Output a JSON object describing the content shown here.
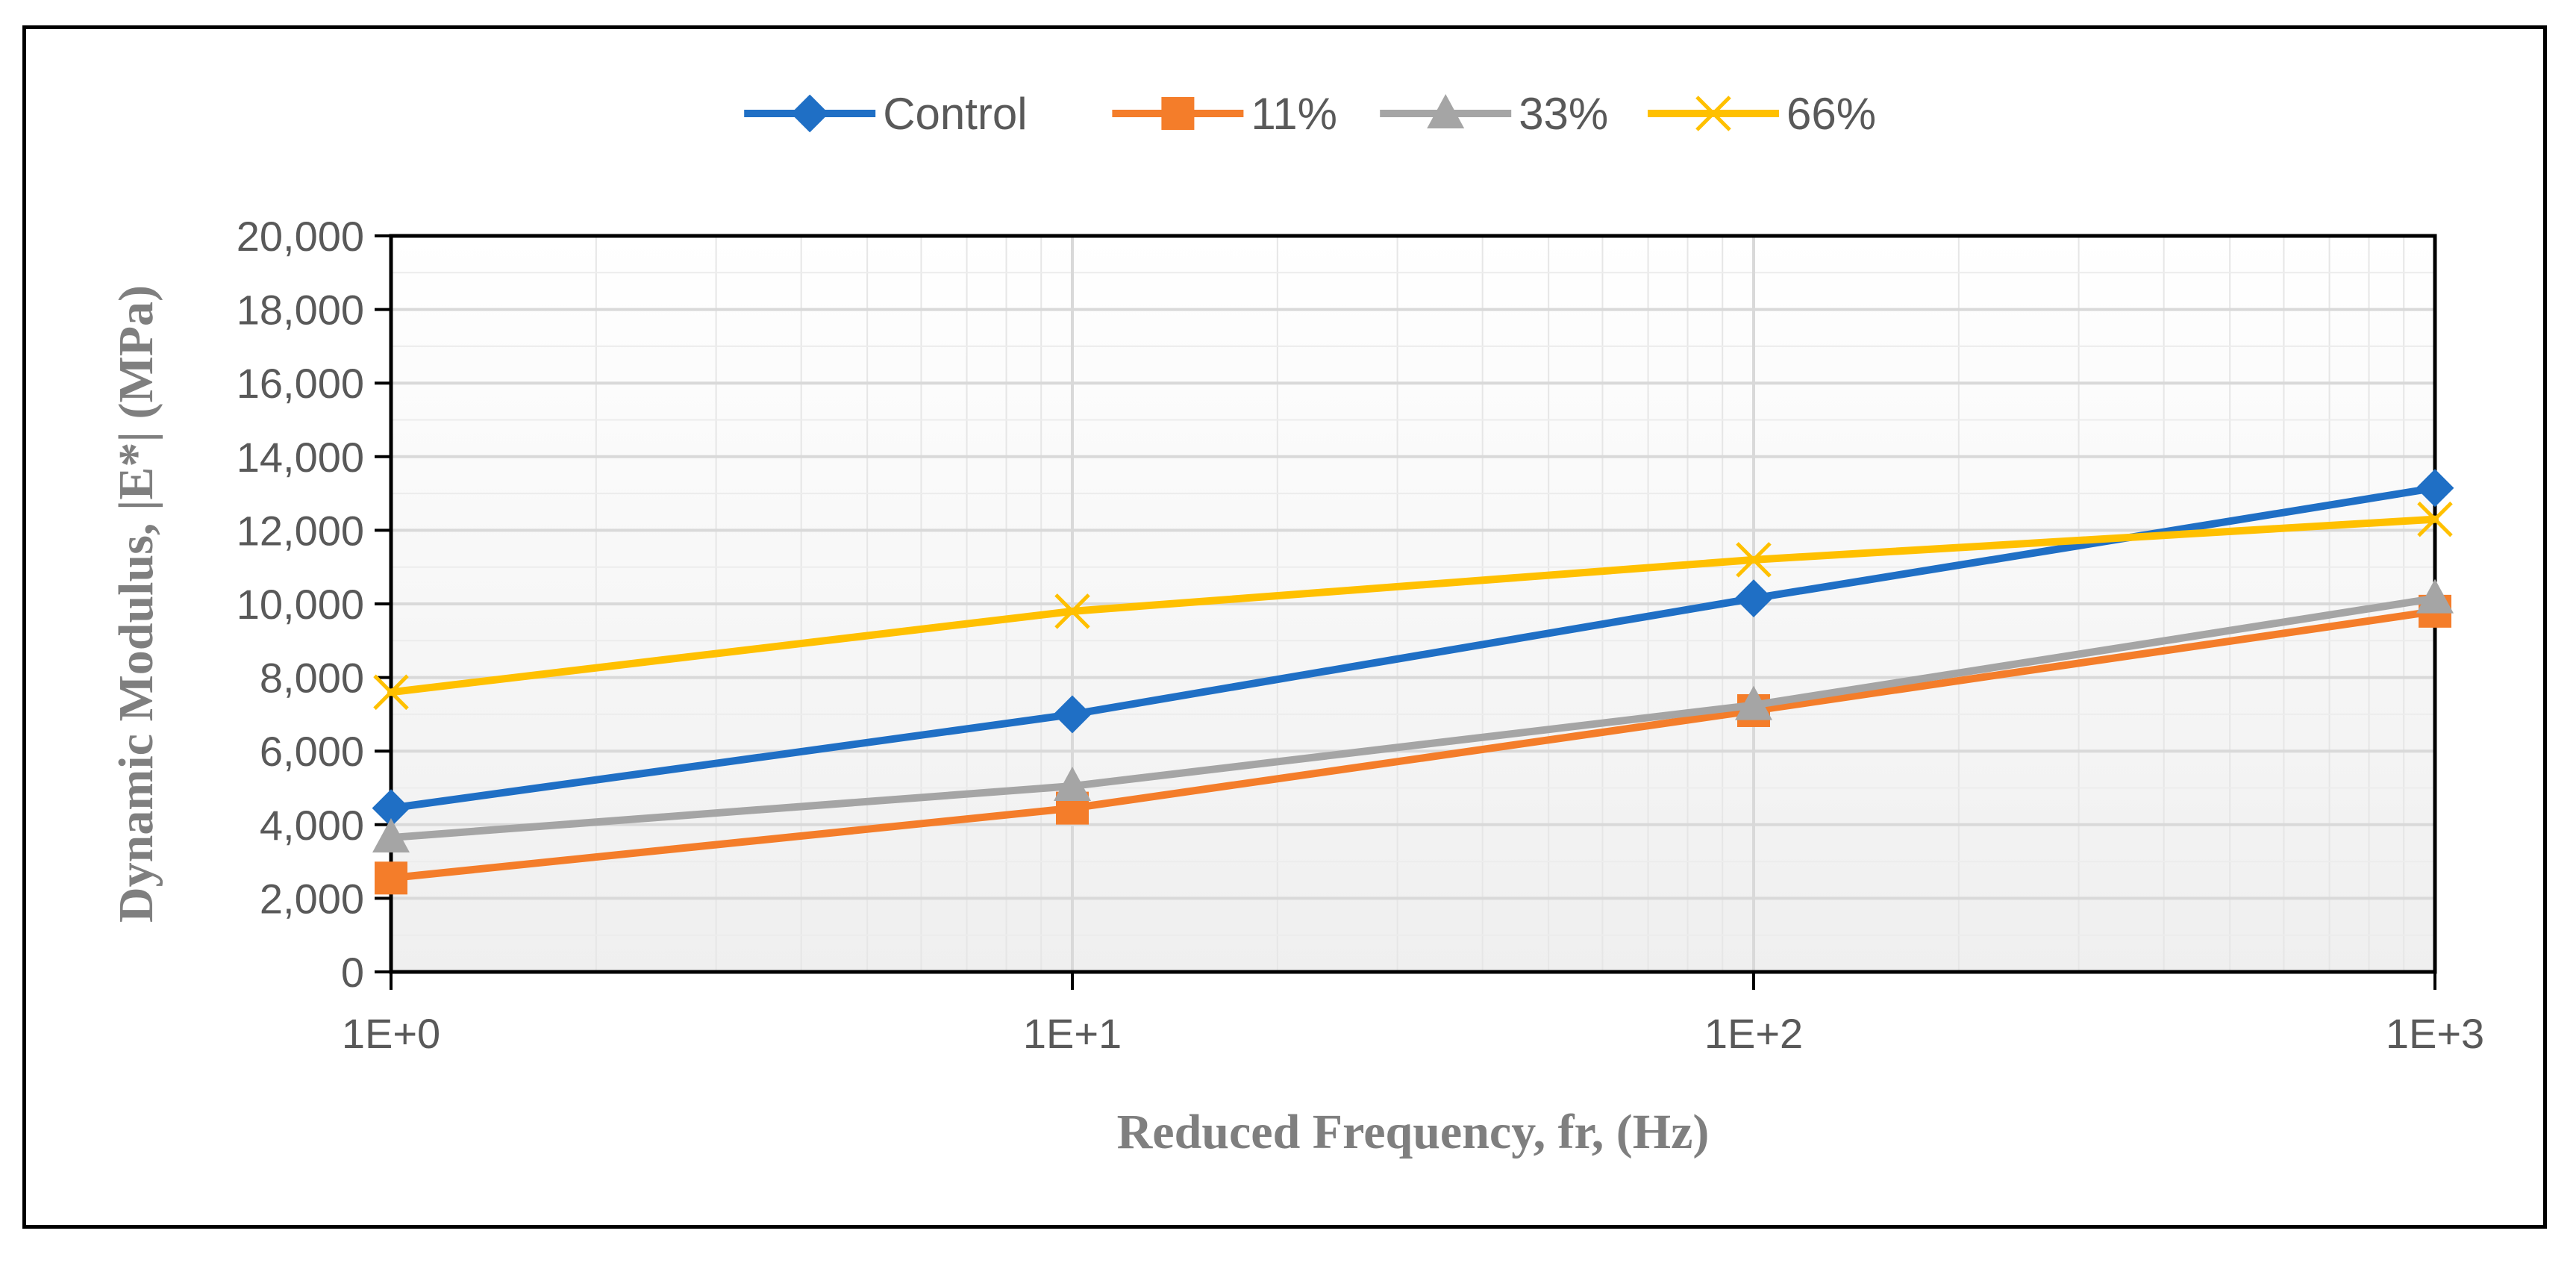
{
  "chart_data": {
    "type": "line",
    "x_scale": "log",
    "x": [
      1,
      10,
      100,
      1000
    ],
    "x_tick_labels": [
      "1E+0",
      "1E+1",
      "1E+2",
      "1E+3"
    ],
    "xlim": [
      1,
      1000
    ],
    "ylim": [
      0,
      20000
    ],
    "y_ticks": [
      0,
      2000,
      4000,
      6000,
      8000,
      10000,
      12000,
      14000,
      16000,
      18000,
      20000
    ],
    "y_tick_labels": [
      "0",
      "2,000",
      "4,000",
      "6,000",
      "8,000",
      "10,000",
      "12,000",
      "14,000",
      "16,000",
      "18,000",
      "20,000"
    ],
    "xlabel": "Reduced Frequency, fr, (Hz)",
    "ylabel": "Dynamic Modulus, |E*|  (MPa)",
    "grid": true,
    "legend_position": "top-center",
    "series": [
      {
        "name": "Control",
        "marker": "diamond",
        "color": "#1F6FC5",
        "values": [
          4450,
          7000,
          10150,
          13150
        ]
      },
      {
        "name": "11%",
        "marker": "square",
        "color": "#F47D2A",
        "values": [
          2550,
          4450,
          7100,
          9800
        ]
      },
      {
        "name": "33%",
        "marker": "triangle",
        "color": "#A5A5A5",
        "values": [
          3650,
          5050,
          7250,
          10150
        ]
      },
      {
        "name": "66%",
        "marker": "x",
        "color": "#FFC000",
        "values": [
          7600,
          9800,
          11200,
          12300
        ]
      }
    ]
  }
}
